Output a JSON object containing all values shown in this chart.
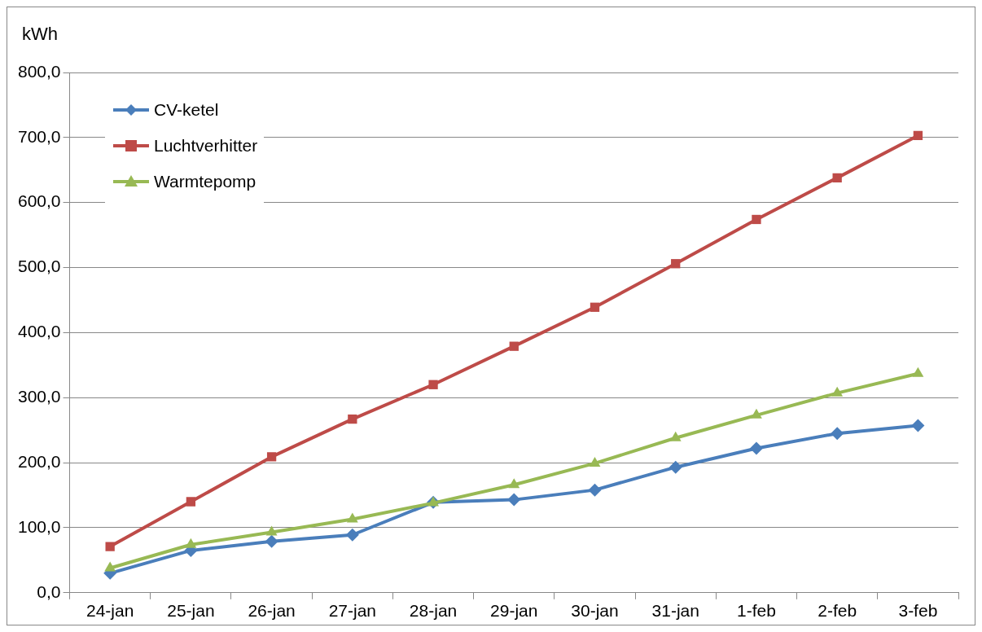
{
  "chart_data": {
    "type": "line",
    "ylabel": "kWh",
    "categories": [
      "24-jan",
      "25-jan",
      "26-jan",
      "27-jan",
      "28-jan",
      "29-jan",
      "30-jan",
      "31-jan",
      "1-feb",
      "2-feb",
      "3-feb"
    ],
    "series": [
      {
        "name": "CV-ketel",
        "color": "#4a7ebb",
        "marker": "diamond",
        "values": [
          30,
          65,
          79,
          89,
          139,
          143,
          158,
          193,
          222,
          245,
          257
        ]
      },
      {
        "name": "Luchtverhitter",
        "color": "#be4b48",
        "marker": "square",
        "values": [
          71,
          140,
          209,
          267,
          320,
          379,
          439,
          506,
          574,
          638,
          703
        ]
      },
      {
        "name": "Warmtepomp",
        "color": "#98b954",
        "marker": "triangle",
        "values": [
          38,
          74,
          93,
          113,
          138,
          166,
          199,
          238,
          273,
          307,
          337
        ]
      }
    ],
    "ylim": [
      0,
      800
    ],
    "yticks": [
      {
        "value": 0,
        "label": "0,0"
      },
      {
        "value": 100,
        "label": "100,0"
      },
      {
        "value": 200,
        "label": "200,0"
      },
      {
        "value": 300,
        "label": "300,0"
      },
      {
        "value": 400,
        "label": "400,0"
      },
      {
        "value": 500,
        "label": "500,0"
      },
      {
        "value": 600,
        "label": "600,0"
      },
      {
        "value": 700,
        "label": "700,0"
      },
      {
        "value": 800,
        "label": "800,0"
      }
    ],
    "grid": "y",
    "legend": "top left"
  }
}
